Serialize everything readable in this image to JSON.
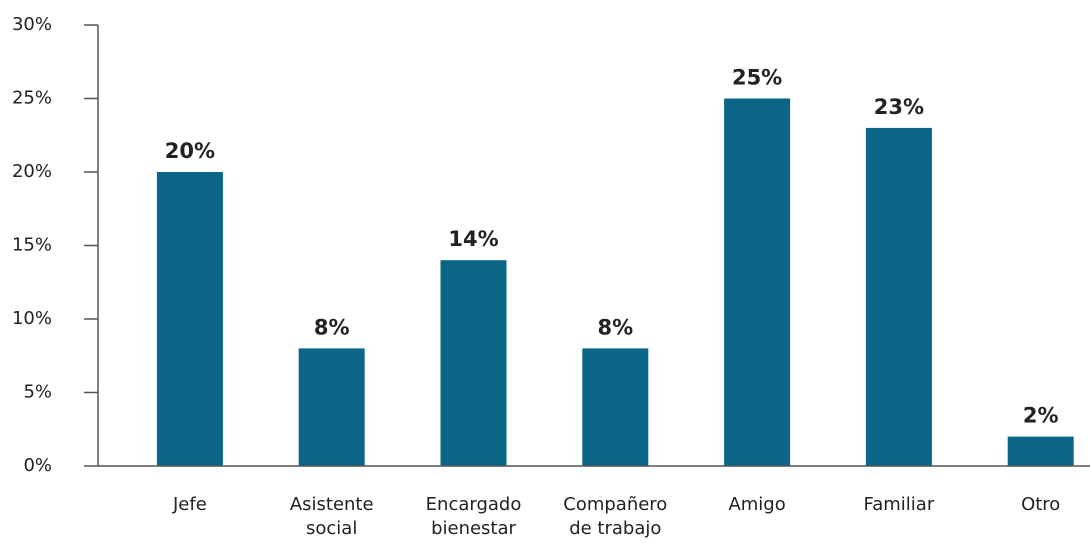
{
  "chart_data": {
    "type": "bar",
    "categories": [
      "Jefe",
      "Asistente social",
      "Encargado bienestar",
      "Compañero de trabajo",
      "Amigo",
      "Familiar",
      "Otro"
    ],
    "values": [
      20,
      8,
      14,
      8,
      25,
      23,
      2
    ],
    "value_labels": [
      "20%",
      "8%",
      "14%",
      "8%",
      "25%",
      "23%",
      "2%"
    ],
    "color": "#0b6586",
    "ylim": [
      0,
      30
    ],
    "yticks": [
      {
        "value": 0,
        "label": "0%"
      },
      {
        "value": 5,
        "label": "5%"
      },
      {
        "value": 10,
        "label": "10%"
      },
      {
        "value": 15,
        "label": "15%"
      },
      {
        "value": 20,
        "label": "20%"
      },
      {
        "value": 25,
        "label": "25%"
      },
      {
        "value": 30,
        "label": "30%"
      }
    ],
    "grid": false
  }
}
